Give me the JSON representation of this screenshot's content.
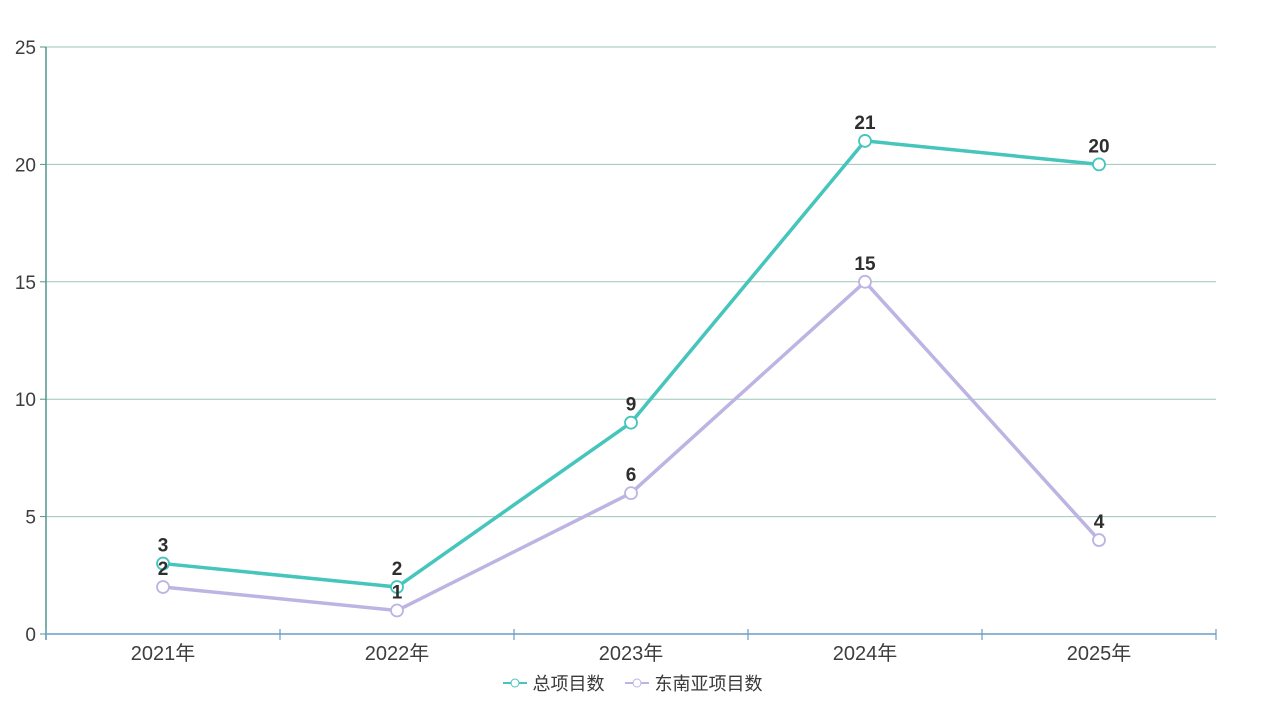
{
  "chart_data": {
    "type": "line",
    "categories": [
      "2021年",
      "2022年",
      "2023年",
      "2024年",
      "2025年"
    ],
    "series": [
      {
        "name": "总项目数",
        "color": "#45c5bc",
        "values": [
          3,
          2,
          9,
          21,
          20
        ]
      },
      {
        "name": "东南亚项目数",
        "color": "#bdb4e3",
        "values": [
          2,
          1,
          6,
          15,
          4
        ]
      }
    ],
    "ylim": [
      0,
      25
    ],
    "y_ticks": [
      0,
      5,
      10,
      15,
      20,
      25
    ],
    "grid": true,
    "legend_position": "bottom",
    "marker_style": "open-circle",
    "colors": {
      "grid_line": "#9cc5b8",
      "y_axis": "#4e958a",
      "x_axis": "#8fb6d4",
      "x_tick": "#6d9cc0",
      "value_label": "#2e2e2e",
      "axis_text": "#3d3d3d",
      "background": "#ffffff"
    }
  }
}
